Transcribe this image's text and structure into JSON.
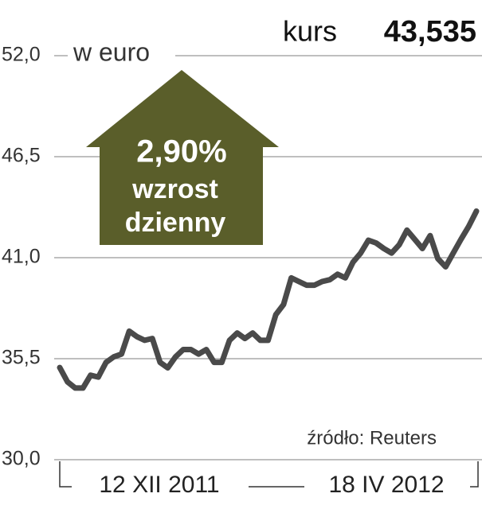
{
  "chart_data": {
    "type": "line",
    "unit_label": "w euro",
    "price_caption": "kurs",
    "price_value": "43,535",
    "badge": [
      "2,90%",
      "wzrost",
      "dzienny"
    ],
    "source": "źródło: Reuters",
    "categories": [
      "12 XII 2011",
      null,
      null,
      null,
      null,
      null,
      null,
      null,
      null,
      null,
      null,
      null,
      null,
      null,
      null,
      null,
      null,
      null,
      null,
      null,
      null,
      null,
      null,
      null,
      null,
      null,
      null,
      null,
      null,
      null,
      null,
      null,
      null,
      null,
      null,
      null,
      null,
      null,
      null,
      null,
      null,
      null,
      null,
      null,
      null,
      null,
      null,
      null,
      null,
      null,
      null,
      null,
      null,
      null,
      "18 IV 2012"
    ],
    "values": [
      35.02,
      34.24,
      33.9,
      33.9,
      34.6,
      34.5,
      35.3,
      35.6,
      35.75,
      37.0,
      36.7,
      36.5,
      36.6,
      35.3,
      35.0,
      35.6,
      36.0,
      36.0,
      35.75,
      36.0,
      35.3,
      35.3,
      36.5,
      36.9,
      36.6,
      36.9,
      36.5,
      36.5,
      37.9,
      38.45,
      39.9,
      39.7,
      39.5,
      39.5,
      39.7,
      39.8,
      40.1,
      39.9,
      40.75,
      41.25,
      41.95,
      41.8,
      41.5,
      41.25,
      41.7,
      42.5,
      42.0,
      41.5,
      42.2,
      40.95,
      40.5,
      41.25,
      42.0,
      42.7,
      43.535
    ],
    "color": "#4a4a4a",
    "ylim": [
      30,
      52
    ],
    "yticks": [
      {
        "value": 30,
        "label": "30,0"
      },
      {
        "value": 35.5,
        "label": "35,5"
      },
      {
        "value": 41,
        "label": "41,0"
      },
      {
        "value": 46.5,
        "label": "46,5"
      },
      {
        "value": 52,
        "label": "52,0"
      }
    ],
    "grid": true
  }
}
